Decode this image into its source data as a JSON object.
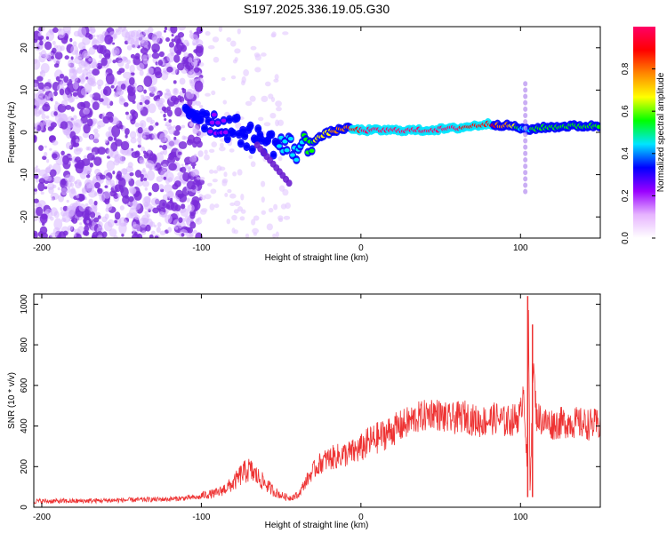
{
  "title": "S197.2025.336.19.05.G30",
  "colors": {
    "snr_line": "#ee3333",
    "speckle": "#7a2bd9",
    "axis": "#000000"
  },
  "chart_data": [
    {
      "id": "spectrogram",
      "type": "heatmap",
      "title": "S197.2025.336.19.05.G30",
      "xlabel": "Height of straight line (km)",
      "ylabel": "Frequency (Hz)",
      "xlim": [
        -205,
        150
      ],
      "ylim": [
        -25,
        25
      ],
      "xticks": [
        -200,
        -100,
        0,
        100
      ],
      "yticks": [
        -20,
        -10,
        0,
        10,
        20
      ],
      "colorbar": {
        "label": "Normalized spectral amplitude",
        "range": [
          0.0,
          1.0
        ],
        "ticks": [
          0.0,
          0.2,
          0.4,
          0.6,
          0.8
        ],
        "colormap": [
          "#ffffff",
          "#e6b3ff",
          "#9900ff",
          "#0000ff",
          "#00e5ff",
          "#00ff00",
          "#ffff00",
          "#ff8800",
          "#ff0000",
          "#ff0066"
        ]
      },
      "ridge": {
        "x": [
          -110,
          -100,
          -90,
          -80,
          -70,
          -60,
          -50,
          -40,
          -30,
          -20,
          -10,
          0,
          20,
          40,
          60,
          80,
          95,
          100,
          105,
          110,
          130,
          150
        ],
        "freq": [
          6,
          4,
          2,
          1,
          -1,
          -2,
          -3,
          -4,
          -2,
          0,
          1,
          0.5,
          0.5,
          0.5,
          1,
          2,
          1.5,
          1,
          0.5,
          1,
          1.5,
          1.5
        ],
        "amplitude": [
          0.3,
          0.3,
          0.25,
          0.3,
          0.3,
          0.35,
          0.4,
          0.45,
          0.6,
          0.7,
          0.8,
          0.95,
          0.95,
          0.95,
          0.95,
          0.9,
          0.7,
          0.5,
          0.45,
          0.6,
          0.6,
          0.55
        ]
      }
    },
    {
      "id": "snr",
      "type": "line",
      "xlabel": "Height of straight line (km)",
      "ylabel": "SNR (10 * v/v)",
      "xlim": [
        -205,
        150
      ],
      "ylim": [
        0,
        1050
      ],
      "xticks": [
        -200,
        -100,
        0,
        100
      ],
      "yticks": [
        0,
        200,
        400,
        600,
        800,
        1000
      ],
      "series": [
        {
          "name": "SNR",
          "x": [
            -205,
            -180,
            -150,
            -120,
            -100,
            -90,
            -85,
            -80,
            -75,
            -70,
            -65,
            -60,
            -55,
            -50,
            -45,
            -40,
            -35,
            -30,
            -25,
            -20,
            -15,
            -10,
            -5,
            0,
            5,
            10,
            15,
            20,
            25,
            30,
            35,
            40,
            45,
            50,
            55,
            60,
            65,
            70,
            75,
            80,
            85,
            90,
            95,
            100,
            102,
            104,
            105,
            106,
            108,
            110,
            115,
            120,
            130,
            140,
            150
          ],
          "values": [
            30,
            30,
            35,
            40,
            50,
            60,
            80,
            100,
            140,
            160,
            130,
            100,
            70,
            50,
            40,
            50,
            120,
            180,
            220,
            240,
            250,
            260,
            270,
            290,
            320,
            340,
            360,
            380,
            400,
            420,
            440,
            450,
            470,
            450,
            430,
            440,
            450,
            430,
            420,
            430,
            440,
            420,
            430,
            450,
            600,
            200,
            900,
            100,
            700,
            450,
            420,
            410,
            420,
            410,
            405
          ],
          "peaks": [
            {
              "x": 104.5,
              "value": 1040
            },
            {
              "x": 107.5,
              "value": 900
            }
          ]
        }
      ]
    }
  ]
}
